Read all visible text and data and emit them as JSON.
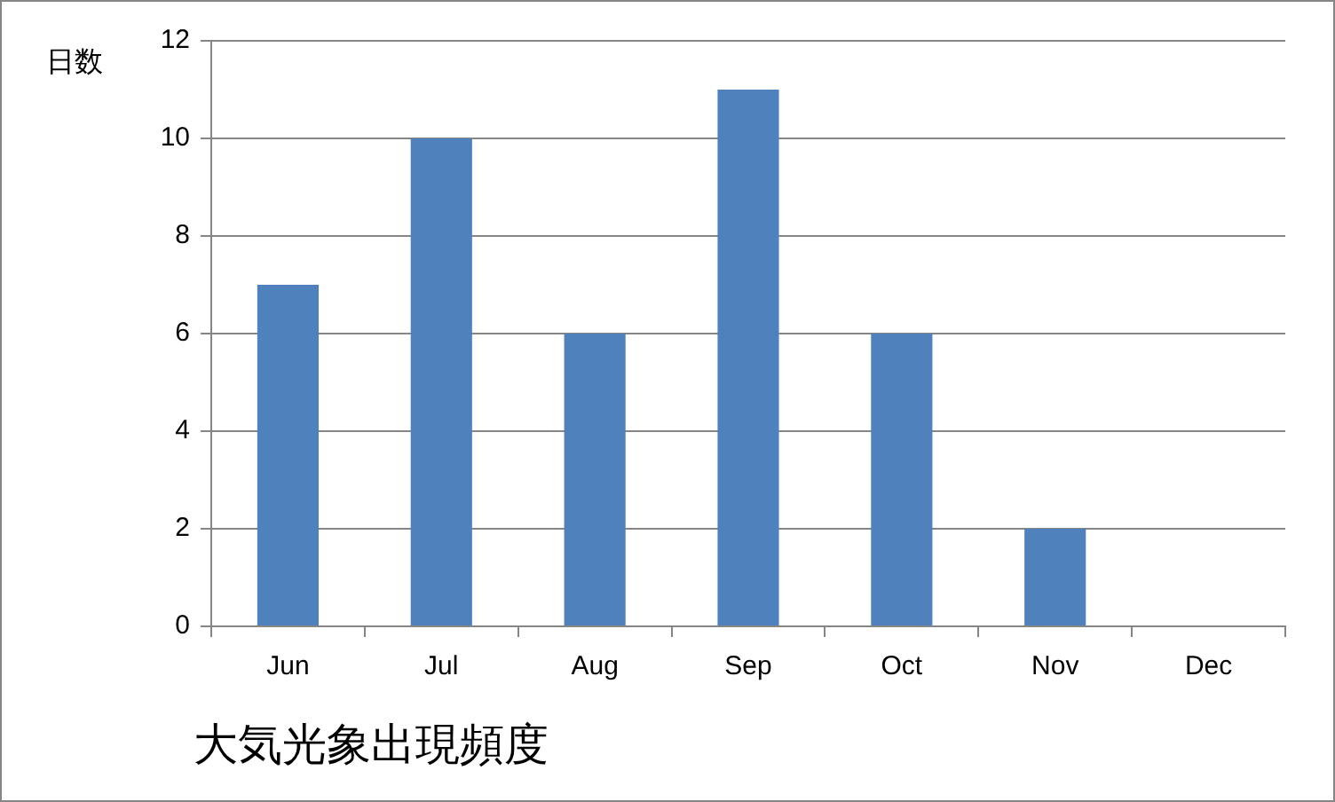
{
  "chart_data": {
    "type": "bar",
    "title": "大気光象出現頻度",
    "ylabel": "日数",
    "categories": [
      "Jun",
      "Jul",
      "Aug",
      "Sep",
      "Oct",
      "Nov",
      "Dec"
    ],
    "values": [
      7,
      10,
      6,
      11,
      6,
      2,
      0
    ],
    "color": "#4f81bd",
    "ylim": [
      0,
      12
    ],
    "yticks": [
      0,
      2,
      4,
      6,
      8,
      10,
      12
    ],
    "grid": "y",
    "legend": false
  }
}
